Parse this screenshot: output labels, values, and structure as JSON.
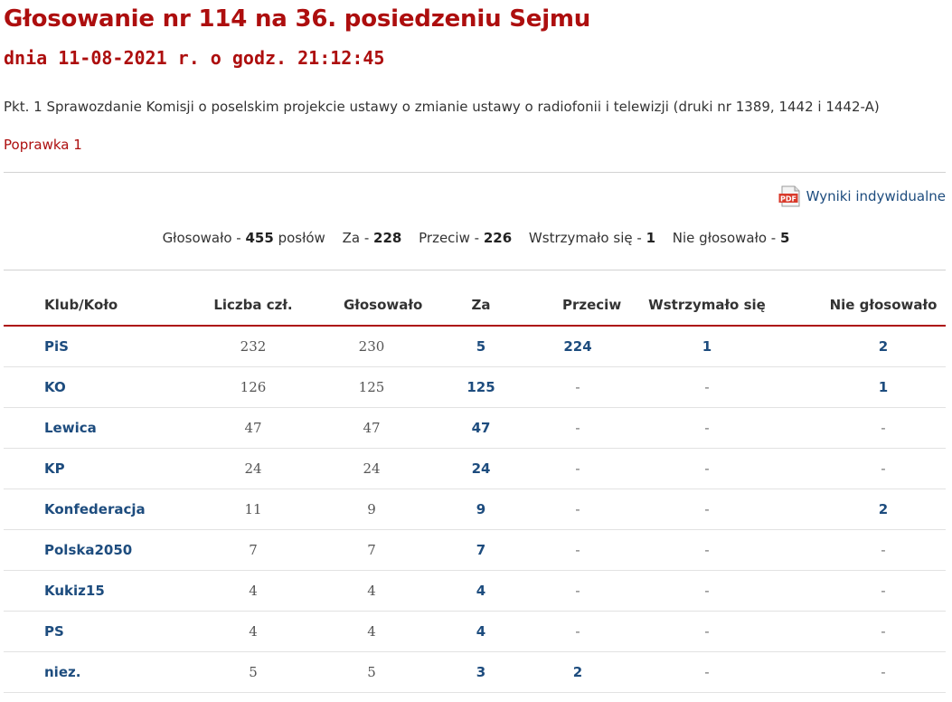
{
  "header": {
    "title": "Głosowanie nr 114 na 36. posiedzeniu Sejmu",
    "subtitle": "dnia 11-08-2021 r. o godz. 21:12:45",
    "topic": "Pkt. 1 Sprawozdanie Komisji o poselskim projekcie ustawy o zmianie ustawy o radiofonii i telewizji (druki nr 1389, 1442 i 1442-A)",
    "amendment_link": "Poprawka 1"
  },
  "pdf_link": {
    "label": "Wyniki indywidualne",
    "icon": "pdf-icon",
    "icon_text": "PDF"
  },
  "summary": {
    "voted_label": "Głosowało -",
    "voted_value": "455",
    "voted_unit": "posłów",
    "for_label": "Za -",
    "for_value": "228",
    "against_label": "Przeciw -",
    "against_value": "226",
    "abstained_label": "Wstrzymało się -",
    "abstained_value": "1",
    "not_voted_label": "Nie głosowało -",
    "not_voted_value": "5"
  },
  "table": {
    "headers": [
      "Klub/Koło",
      "Liczba czł.",
      "Głosowało",
      "Za",
      "Przeciw",
      "Wstrzymało się",
      "Nie głosowało"
    ],
    "rows": [
      [
        "PiS",
        "232",
        "230",
        "5",
        "224",
        "1",
        "2"
      ],
      [
        "KO",
        "126",
        "125",
        "125",
        "-",
        "-",
        "1"
      ],
      [
        "Lewica",
        "47",
        "47",
        "47",
        "-",
        "-",
        "-"
      ],
      [
        "KP",
        "24",
        "24",
        "24",
        "-",
        "-",
        "-"
      ],
      [
        "Konfederacja",
        "11",
        "9",
        "9",
        "-",
        "-",
        "2"
      ],
      [
        "Polska2050",
        "7",
        "7",
        "7",
        "-",
        "-",
        "-"
      ],
      [
        "Kukiz15",
        "4",
        "4",
        "4",
        "-",
        "-",
        "-"
      ],
      [
        "PS",
        "4",
        "4",
        "4",
        "-",
        "-",
        "-"
      ],
      [
        "niez.",
        "5",
        "5",
        "3",
        "2",
        "-",
        "-"
      ]
    ]
  },
  "colors": {
    "accent_red": "#ad0e0e",
    "link_blue": "#1d4c7e",
    "text": "#333333",
    "divider": "#d2d2d2"
  }
}
